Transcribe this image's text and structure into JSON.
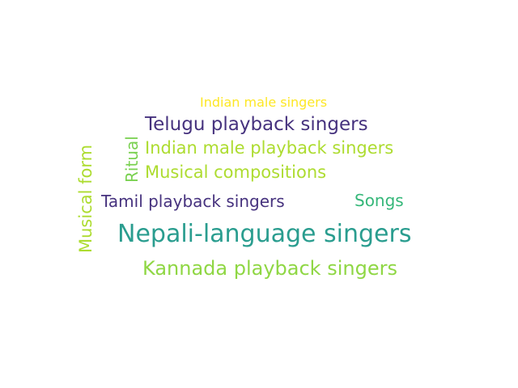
{
  "words": [
    {
      "text": "Indian male singers",
      "color": "#fde725"
    },
    {
      "text": "Telugu playback singers",
      "color": "#46327e"
    },
    {
      "text": "Indian male playback singers",
      "color": "#addc30"
    },
    {
      "text": "Musical compositions",
      "color": "#addc30"
    },
    {
      "text": "Ritual",
      "color": "#7ad151"
    },
    {
      "text": "Musical form",
      "color": "#addc30"
    },
    {
      "text": "Tamil playback singers",
      "color": "#46327e"
    },
    {
      "text": "Songs",
      "color": "#35b779"
    },
    {
      "text": "Nepali-language singers",
      "color": "#2a9d8f"
    },
    {
      "text": "Kannada playback singers",
      "color": "#8fd744"
    }
  ]
}
